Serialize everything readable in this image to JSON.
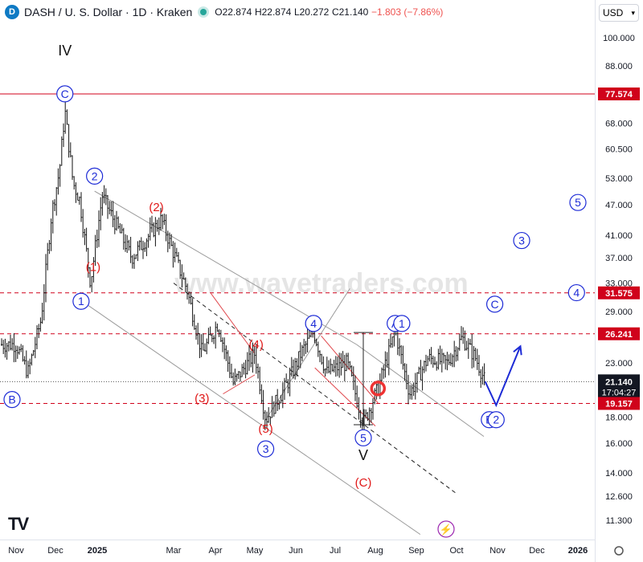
{
  "header": {
    "logo_glyph": "D",
    "symbol": "DASH / U. S. Dollar · 1D · Kraken",
    "open": "O22.874",
    "high": "H22.874",
    "low": "L20.272",
    "close": "C21.140",
    "change": "−1.803 (−7.86%)"
  },
  "currency_selector": {
    "label": "USD",
    "icon": "chevron-down-icon"
  },
  "watermark": "www.wavetraders.com",
  "tv_logo": "TV",
  "colors": {
    "up": "#26a69a",
    "down": "#ef5350",
    "wave_blue": "#1d2bd6",
    "wave_red": "#e01818",
    "level_red": "#d0021b",
    "axis_text": "#131722"
  },
  "chart_data": {
    "type": "candlestick",
    "symbol": "DASH/USD",
    "interval": "1D",
    "y_scale": "log",
    "ylim": [
      10.5,
      112
    ],
    "price_ticks": [
      "100.000",
      "88.000",
      "77.574",
      "68.000",
      "60.500",
      "53.000",
      "47.000",
      "41.000",
      "37.000",
      "33.000",
      "31.575",
      "29.000",
      "26.241",
      "23.000",
      "21.140",
      "19.157",
      "18.000",
      "16.000",
      "14.000",
      "12.600",
      "11.300"
    ],
    "time_labels": [
      "Nov",
      "Dec",
      "2025",
      "Mar",
      "Apr",
      "May",
      "Jun",
      "Jul",
      "Aug",
      "Sep",
      "Oct",
      "Nov",
      "Dec",
      "2026"
    ],
    "last_price": {
      "value": 21.14,
      "label": "21.140",
      "countdown": "17:04:27"
    },
    "levels": [
      {
        "value": 77.574,
        "label": "77.574",
        "style": "solid"
      },
      {
        "value": 31.575,
        "label": "31.575",
        "style": "dashed"
      },
      {
        "value": 26.241,
        "label": "26.241",
        "style": "dashed"
      },
      {
        "value": 19.157,
        "label": "19.157",
        "style": "dashed"
      }
    ],
    "price_path": [
      [
        "Nov 1",
        25.0
      ],
      [
        "Nov 10",
        22.0
      ],
      [
        "Nov 20",
        28.0
      ],
      [
        "Nov 28",
        45.0
      ],
      [
        "Dec 4",
        55.0
      ],
      [
        "Dec 8",
        72.0
      ],
      [
        "Dec 14",
        52.0
      ],
      [
        "Dec 19",
        48.0
      ],
      [
        "Dec 27",
        33.0
      ],
      [
        "Jan 3",
        49.0
      ],
      [
        "Jan 15",
        37.0
      ],
      [
        "Jan 27",
        44.0
      ],
      [
        "Feb 10",
        32.0
      ],
      [
        "Feb 20",
        24.0
      ],
      [
        "Mar 3",
        27.5
      ],
      [
        "Mar 15",
        21.0
      ],
      [
        "Apr 1",
        24.0
      ],
      [
        "Apr 9",
        17.8
      ],
      [
        "Apr 25",
        21.0
      ],
      [
        "May 5",
        24.0
      ],
      [
        "May 15",
        26.5
      ],
      [
        "May 25",
        22.0
      ],
      [
        "Jun 10",
        23.0
      ],
      [
        "Jun 22",
        17.5
      ],
      [
        "Jul 3",
        20.5
      ],
      [
        "Jul 16",
        26.5
      ],
      [
        "Jul 27",
        20.0
      ],
      [
        "Aug 10",
        23.5
      ],
      [
        "Aug 25",
        23.0
      ],
      [
        "Sep 5",
        25.8
      ],
      [
        "Sep 15",
        23.5
      ],
      [
        "Sep 22",
        21.14
      ]
    ],
    "projection": [
      [
        "Sep 22",
        21.14
      ],
      [
        "Sep 30",
        19.0
      ],
      [
        "Oct 19",
        24.8
      ]
    ],
    "labels": [
      {
        "text": "IV",
        "color": "black",
        "circled": false,
        "at": [
          "Dec 8",
          94
        ]
      },
      {
        "text": "C",
        "color": "blue",
        "circled": true,
        "at": [
          "Dec 8",
          77.6
        ]
      },
      {
        "text": "B",
        "color": "blue",
        "circled": true,
        "at": [
          "Oct 28",
          19.5
        ]
      },
      {
        "text": "2",
        "color": "blue",
        "circled": true,
        "at": [
          "Dec 30",
          53.5
        ]
      },
      {
        "text": "(2)",
        "color": "red",
        "circled": false,
        "at": [
          "Jan 25",
          46.5
        ]
      },
      {
        "text": "(1)",
        "color": "red",
        "circled": false,
        "at": [
          "Dec 29",
          35.5
        ]
      },
      {
        "text": "1",
        "color": "blue",
        "circled": true,
        "at": [
          "Dec 20",
          30.4
        ]
      },
      {
        "text": "(3)",
        "color": "red",
        "circled": false,
        "at": [
          "Feb 20",
          19.6
        ]
      },
      {
        "text": "(4)",
        "color": "red",
        "circled": false,
        "at": [
          "Apr 2",
          25.0
        ]
      },
      {
        "text": "(5)",
        "color": "red",
        "circled": false,
        "at": [
          "Apr 9",
          17.1
        ]
      },
      {
        "text": "3",
        "color": "blue",
        "circled": true,
        "at": [
          "Apr 9",
          15.6
        ]
      },
      {
        "text": "4",
        "color": "blue",
        "circled": true,
        "at": [
          "May 15",
          27.5
        ]
      },
      {
        "text": "5",
        "color": "blue",
        "circled": true,
        "at": [
          "Jun 22",
          16.4
        ]
      },
      {
        "text": "V",
        "color": "black",
        "circled": false,
        "at": [
          "Jun 22",
          15.1
        ]
      },
      {
        "text": "(C)",
        "color": "red",
        "circled": false,
        "at": [
          "Jun 22",
          13.4
        ]
      },
      {
        "text": "A",
        "color": "blue",
        "circled": true,
        "at": [
          "Jul 16",
          27.5
        ]
      },
      {
        "text": "1",
        "color": "blue",
        "circled": true,
        "at": [
          "Jul 21",
          27.5
        ]
      },
      {
        "text": "B",
        "color": "blue",
        "circled": true,
        "at": [
          "Sep 25",
          17.8
        ]
      },
      {
        "text": "2",
        "color": "blue",
        "circled": true,
        "at": [
          "Sep 30",
          17.8
        ]
      },
      {
        "text": "C",
        "color": "blue",
        "circled": true,
        "at": [
          "Sep 29",
          30.0
        ]
      },
      {
        "text": "3",
        "color": "blue",
        "circled": true,
        "at": [
          "Oct 20",
          40.0
        ]
      },
      {
        "text": "4",
        "color": "blue",
        "circled": true,
        "at": [
          "Nov 30",
          31.6
        ]
      },
      {
        "text": "5",
        "color": "blue",
        "circled": true,
        "at": [
          "Dec 1",
          47.5
        ]
      }
    ],
    "trendlines": [
      {
        "color": "gray",
        "style": "solid",
        "points": [
          [
            "Dec 30",
            50.0
          ],
          [
            "Jun 17",
            25.0
          ]
        ]
      },
      {
        "color": "gray",
        "style": "solid",
        "points": [
          [
            "Jun 17",
            25.0
          ],
          [
            "Sep 21",
            16.5
          ]
        ]
      },
      {
        "color": "gray",
        "style": "solid",
        "points": [
          [
            "Dec 20",
            30.5
          ],
          [
            "Aug 4",
            10.6
          ]
        ]
      },
      {
        "color": "gray",
        "style": "solid",
        "points": [
          [
            "Apr 9",
            17.8
          ],
          [
            "Jun 12",
            32.2
          ]
        ]
      },
      {
        "color": "black",
        "style": "dashed",
        "points": [
          [
            "Feb 1",
            33.0
          ],
          [
            "Aug 31",
            12.8
          ]
        ]
      },
      {
        "color": "red",
        "style": "solid",
        "points": [
          [
            "Feb 26",
            31.5
          ],
          [
            "Apr 1",
            24.0
          ]
        ]
      },
      {
        "color": "red",
        "style": "solid",
        "points": [
          [
            "Mar 7",
            20.0
          ],
          [
            "Apr 1",
            21.8
          ]
        ]
      },
      {
        "color": "red",
        "style": "solid",
        "points": [
          [
            "May 21",
            26.0
          ],
          [
            "Jul 3",
            19.2
          ]
        ]
      },
      {
        "color": "red",
        "style": "solid",
        "points": [
          [
            "May 16",
            22.5
          ],
          [
            "Jul 1",
            17.3
          ]
        ]
      }
    ]
  }
}
